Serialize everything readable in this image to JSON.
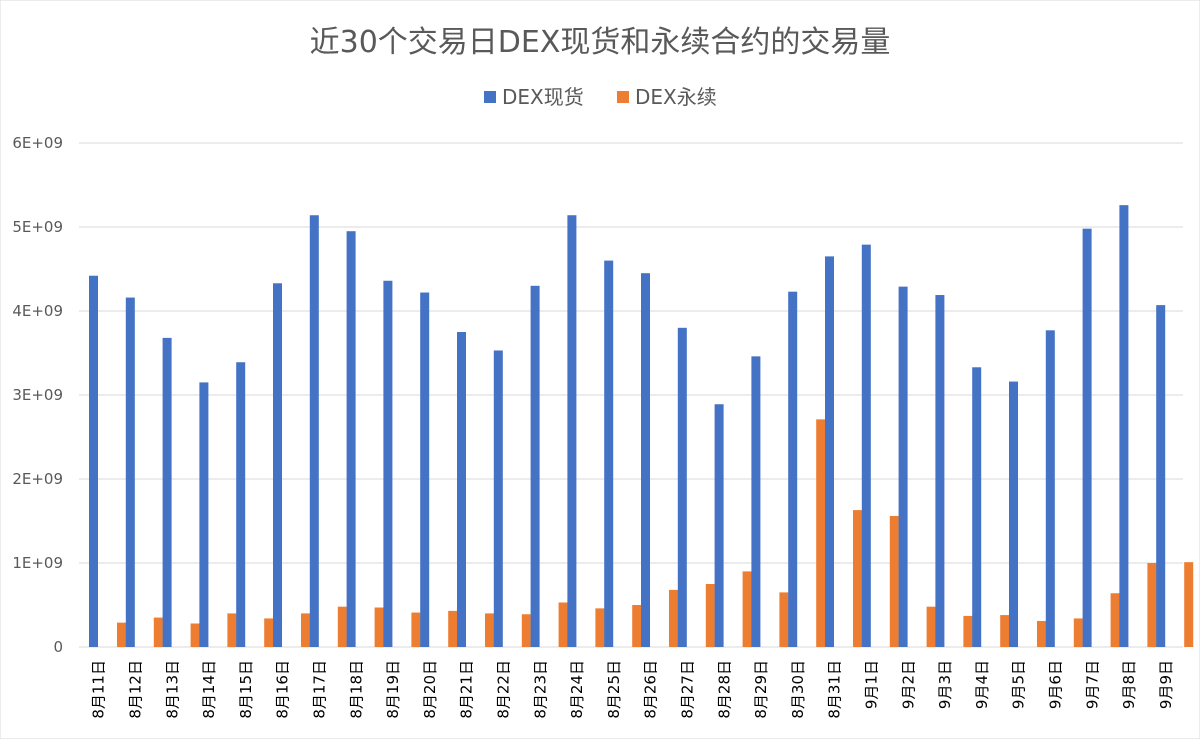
{
  "chart_data": {
    "type": "bar",
    "title": "近30个交易日DEX现货和永续合约的交易量",
    "xlabel": "",
    "ylabel": "",
    "ylim": [
      0,
      6000000000
    ],
    "yticks": [
      0,
      1000000000,
      2000000000,
      3000000000,
      4000000000,
      5000000000,
      6000000000
    ],
    "ytick_labels": [
      "0",
      "1E+09",
      "2E+09",
      "3E+09",
      "4E+09",
      "5E+09",
      "6E+09"
    ],
    "grid": true,
    "legend_position": "top",
    "categories": [
      "8月11日",
      "8月12日",
      "8月13日",
      "8月14日",
      "8月15日",
      "8月16日",
      "8月17日",
      "8月18日",
      "8月19日",
      "8月20日",
      "8月21日",
      "8月22日",
      "8月23日",
      "8月24日",
      "8月25日",
      "8月26日",
      "8月27日",
      "8月28日",
      "8月29日",
      "8月30日",
      "8月31日",
      "9月1日",
      "9月2日",
      "9月3日",
      "9月4日",
      "9月5日",
      "9月6日",
      "9月7日",
      "9月8日",
      "9月9日"
    ],
    "series": [
      {
        "name": "DEX现货",
        "color": "#4472c4",
        "values": [
          4420000000,
          4160000000,
          3680000000,
          3150000000,
          3390000000,
          4330000000,
          5140000000,
          4950000000,
          4360000000,
          4220000000,
          3750000000,
          3530000000,
          4300000000,
          5140000000,
          4600000000,
          4450000000,
          3800000000,
          2890000000,
          3460000000,
          4230000000,
          4650000000,
          4790000000,
          4290000000,
          4190000000,
          3330000000,
          3160000000,
          3770000000,
          4980000000,
          5260000000,
          4070000000
        ]
      },
      {
        "name": "DEX永续",
        "color": "#ed7d31",
        "values": [
          290000000,
          350000000,
          280000000,
          400000000,
          340000000,
          400000000,
          480000000,
          470000000,
          410000000,
          430000000,
          400000000,
          390000000,
          530000000,
          460000000,
          500000000,
          680000000,
          750000000,
          900000000,
          650000000,
          2710000000,
          1630000000,
          1560000000,
          480000000,
          370000000,
          380000000,
          310000000,
          340000000,
          640000000,
          1000000000,
          1010000000
        ]
      }
    ]
  }
}
